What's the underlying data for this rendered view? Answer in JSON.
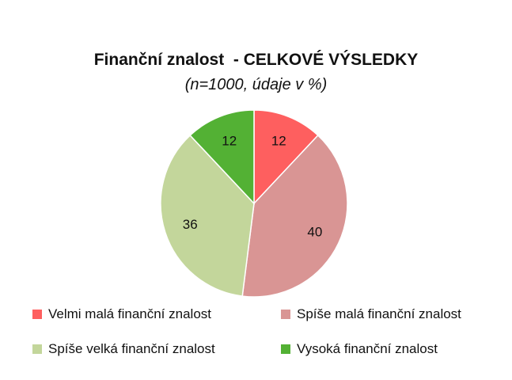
{
  "chart_data": {
    "type": "pie",
    "title": "Finanční znalost  - CELKOVÉ VÝSLEDKY",
    "subtitle": "(n=1000, údaje v %)",
    "categories": [
      "Velmi malá finanční znalost",
      "Spíše malá finanční znalost",
      "Spíše velká finanční znalost",
      "Vysoká finanční znalost"
    ],
    "values": [
      12,
      40,
      36,
      12
    ],
    "data_labels": [
      "12",
      "40",
      "36",
      "12"
    ],
    "colors": [
      "#fe5f5f",
      "#d99594",
      "#c3d69b",
      "#53b134"
    ],
    "legend_position": "bottom",
    "start_angle": "top",
    "direction": "clockwise"
  }
}
